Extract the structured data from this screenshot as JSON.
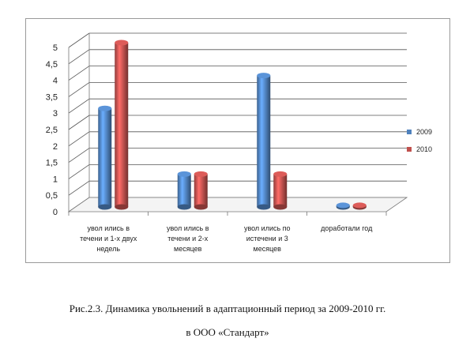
{
  "chart_data": {
    "type": "bar",
    "categories": [
      [
        "увол ились в",
        "течени и 1-х двух",
        "недель"
      ],
      [
        "увол ились в",
        "течени и 2-х",
        "месяцев"
      ],
      [
        "увол ились по",
        "истечени и 3",
        "месяцев"
      ],
      [
        "доработали год"
      ]
    ],
    "series": [
      {
        "name": "2009",
        "values": [
          3,
          1,
          4,
          0.05
        ],
        "color": "#4f81bd"
      },
      {
        "name": "2010",
        "values": [
          5,
          1,
          1,
          0.05
        ],
        "color": "#c0504d"
      }
    ],
    "ylim": [
      0,
      5
    ],
    "yticks": [
      "0",
      "0,5",
      "1",
      "1,5",
      "2",
      "2,5",
      "3",
      "3,5",
      "4",
      "4,5",
      "5"
    ],
    "grid": true,
    "legend": "right"
  },
  "caption": {
    "line1": "Рис.2.3. Динамика увольнений в адаптационный период за 2009-2010 гг.",
    "line2": "в ООО «Стандарт»"
  }
}
